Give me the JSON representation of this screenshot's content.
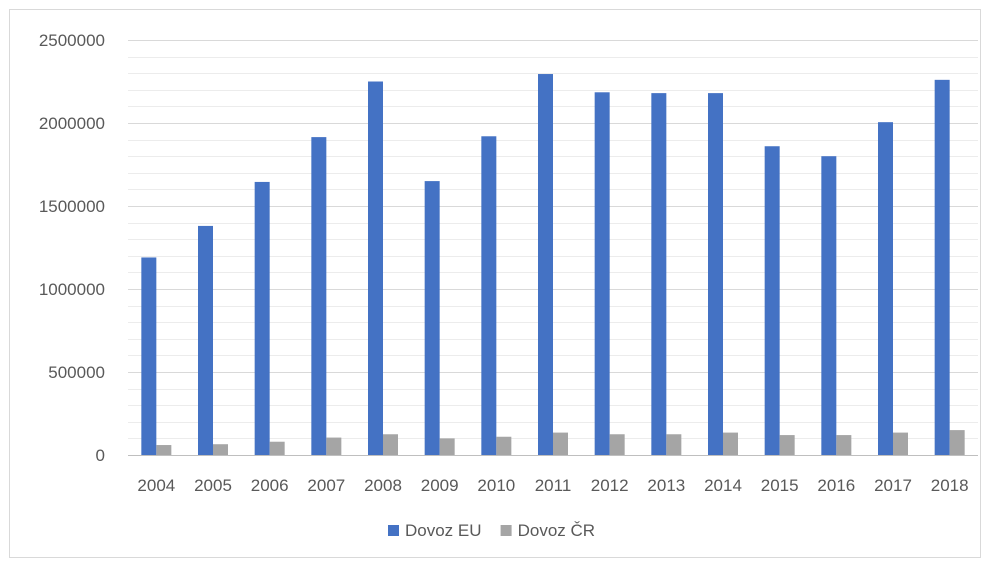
{
  "chart_data": {
    "type": "bar",
    "title": "",
    "xlabel": "",
    "ylabel": "",
    "categories": [
      "2004",
      "2005",
      "2006",
      "2007",
      "2008",
      "2009",
      "2010",
      "2011",
      "2012",
      "2013",
      "2014",
      "2015",
      "2016",
      "2017",
      "2018"
    ],
    "series": [
      {
        "name": "Dovoz EU",
        "color": "#4472c4",
        "values": [
          1190000,
          1380000,
          1645000,
          1915000,
          2250000,
          1650000,
          1920000,
          2295000,
          2185000,
          2180000,
          2180000,
          1860000,
          1800000,
          2005000,
          2260000
        ]
      },
      {
        "name": "Dovoz ČR",
        "color": "#a5a5a5",
        "values": [
          60000,
          65000,
          80000,
          105000,
          125000,
          100000,
          110000,
          135000,
          125000,
          125000,
          135000,
          120000,
          120000,
          135000,
          150000
        ]
      }
    ],
    "ylim": [
      0,
      2500000
    ],
    "yticks": [
      "0",
      "500000",
      "1000000",
      "1500000",
      "2000000",
      "2500000"
    ],
    "ytick_values": [
      0,
      500000,
      1000000,
      1500000,
      2000000,
      2500000
    ],
    "minor_grid_step": 100000,
    "grid": true,
    "legend_position": "bottom",
    "colors": {
      "gridline": "#d9d9d9",
      "axis": "#bfbfbf",
      "text": "#595959"
    }
  }
}
